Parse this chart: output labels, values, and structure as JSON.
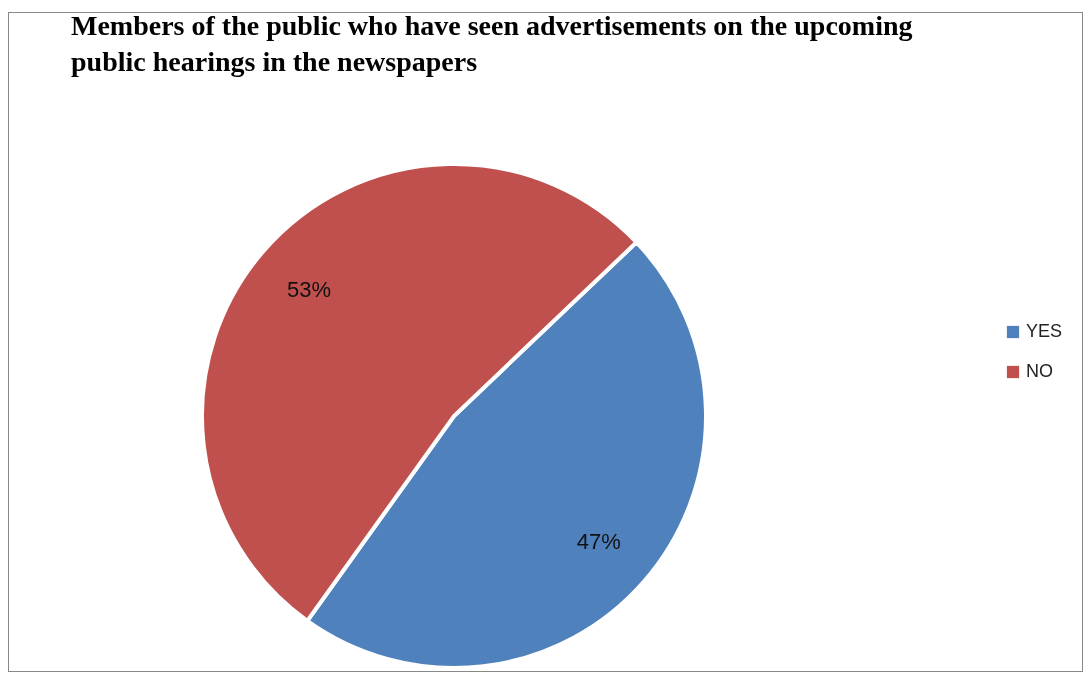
{
  "chart_data": {
    "type": "pie",
    "title": "Members of the public who have seen advertisements on the upcoming public hearings in the newspapers",
    "categories": [
      "YES",
      "NO"
    ],
    "values": [
      47,
      53
    ],
    "colors": [
      "#4f81bd",
      "#c0504d"
    ],
    "value_labels": [
      "47%",
      "53%"
    ],
    "legend": "right"
  }
}
